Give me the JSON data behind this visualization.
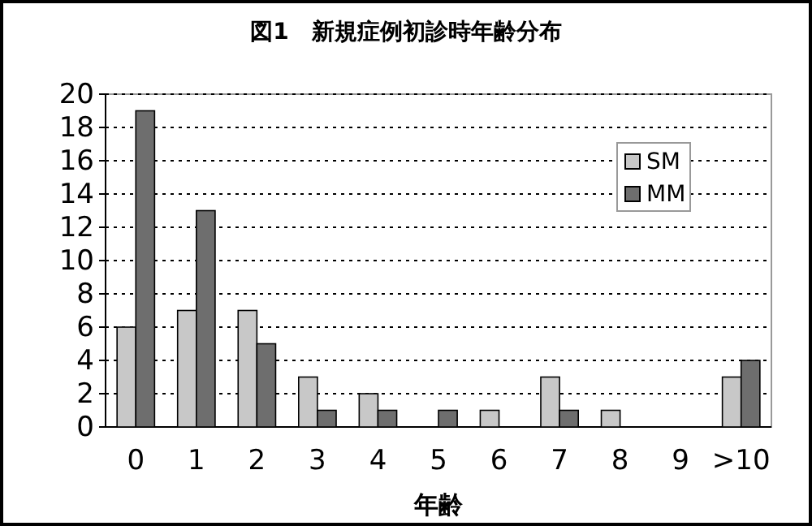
{
  "chart_data": {
    "type": "bar",
    "title": "図1　新規症例初診時年齢分布",
    "xlabel": "年齢",
    "categories": [
      "0",
      "1",
      "2",
      "3",
      "4",
      "5",
      "6",
      "7",
      "8",
      "9",
      ">10"
    ],
    "series": [
      {
        "name": "SM",
        "color": "#c8c8c8",
        "values": [
          6,
          7,
          7,
          3,
          2,
          0,
          1,
          3,
          1,
          0,
          3
        ]
      },
      {
        "name": "MM",
        "color": "#6e6e6e",
        "values": [
          19,
          13,
          5,
          1,
          1,
          1,
          0,
          1,
          0,
          0,
          4
        ]
      }
    ],
    "ylim": [
      0,
      20
    ],
    "yticks": [
      0,
      2,
      4,
      6,
      8,
      10,
      12,
      14,
      16,
      18,
      20
    ],
    "grid": "y",
    "legend": "top right"
  }
}
